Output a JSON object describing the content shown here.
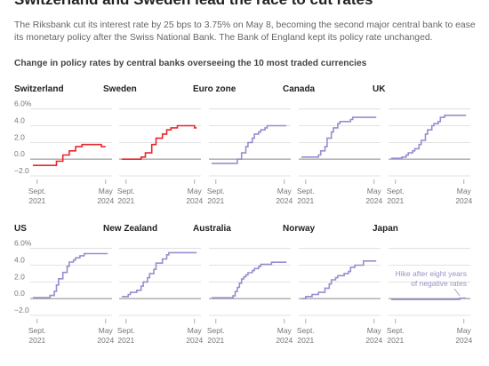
{
  "header": {
    "headline": "Switzerland and Sweden lead the race to cut rates",
    "subhead": "The Riksbank cut its interest rate by 25 bps to 3.75% on May 8, becoming the second major central bank to ease its monetary policy after the Swiss National Bank. The Bank of England kept its policy rate unchanged."
  },
  "colors": {
    "cut": "#e8262c",
    "no_cut": "#9b8ccf",
    "grid": "#d9d9d9",
    "baseline": "#888888"
  },
  "chart_data": {
    "type": "line",
    "title": "Change in policy rates by central banks overseeing the 10 most traded currencies",
    "y_tick_labels": [
      "6.0%",
      "4.0",
      "2.0",
      "0.0",
      "−2.0"
    ],
    "y_ticks": [
      6,
      4,
      2,
      0,
      -2
    ],
    "ylim": [
      -2,
      6.5
    ],
    "x_range": [
      "2021-09",
      "2024-05"
    ],
    "x_tick_labels": [
      [
        "Sept.",
        "2021"
      ],
      [
        "May",
        "2024"
      ]
    ],
    "panels": [
      {
        "name": "Switzerland",
        "color": "cut",
        "show_y_labels": true,
        "x": [
          "2021-07",
          "2022-06",
          "2022-09",
          "2022-12",
          "2023-03",
          "2023-06",
          "2024-03",
          "2024-05"
        ],
        "y": [
          -0.75,
          -0.25,
          0.5,
          1.0,
          1.5,
          1.75,
          1.5,
          1.5
        ]
      },
      {
        "name": "Sweden",
        "color": "cut",
        "show_y_labels": false,
        "x": [
          "2021-07",
          "2022-04",
          "2022-06",
          "2022-09",
          "2022-11",
          "2023-02",
          "2023-04",
          "2023-06",
          "2023-09",
          "2024-05",
          "2024-06"
        ],
        "y": [
          0,
          0.25,
          0.75,
          1.75,
          2.5,
          3.0,
          3.5,
          3.75,
          4.0,
          3.75,
          3.75
        ]
      },
      {
        "name": "Euro zone",
        "color": "no_cut",
        "show_y_labels": false,
        "x": [
          "2021-07",
          "2022-07",
          "2022-09",
          "2022-11",
          "2022-12",
          "2023-02",
          "2023-03",
          "2023-05",
          "2023-06",
          "2023-08",
          "2023-09",
          "2024-06"
        ],
        "y": [
          -0.5,
          0,
          0.75,
          1.5,
          2.0,
          2.5,
          3.0,
          3.25,
          3.5,
          3.75,
          4.0,
          4.0
        ]
      },
      {
        "name": "Canada",
        "color": "no_cut",
        "show_y_labels": false,
        "x": [
          "2021-07",
          "2022-03",
          "2022-04",
          "2022-06",
          "2022-07",
          "2022-09",
          "2022-10",
          "2022-12",
          "2023-01",
          "2023-06",
          "2023-07",
          "2024-06"
        ],
        "y": [
          0.25,
          0.5,
          1.0,
          1.5,
          2.5,
          3.25,
          3.75,
          4.25,
          4.5,
          4.75,
          5.0,
          5.0
        ]
      },
      {
        "name": "UK",
        "color": "no_cut",
        "show_y_labels": false,
        "x": [
          "2021-07",
          "2021-12",
          "2022-02",
          "2022-03",
          "2022-05",
          "2022-06",
          "2022-08",
          "2022-09",
          "2022-11",
          "2022-12",
          "2023-02",
          "2023-03",
          "2023-05",
          "2023-06",
          "2023-08",
          "2024-06"
        ],
        "y": [
          0.1,
          0.25,
          0.5,
          0.75,
          1.0,
          1.25,
          1.75,
          2.25,
          3.0,
          3.5,
          4.0,
          4.25,
          4.5,
          5.0,
          5.25,
          5.25
        ]
      },
      {
        "name": "US",
        "color": "no_cut",
        "show_y_labels": true,
        "x": [
          "2021-07",
          "2022-03",
          "2022-05",
          "2022-06",
          "2022-07",
          "2022-09",
          "2022-11",
          "2022-12",
          "2023-02",
          "2023-03",
          "2023-05",
          "2023-07",
          "2024-06"
        ],
        "y": [
          0.13,
          0.38,
          0.88,
          1.63,
          2.38,
          3.13,
          3.88,
          4.38,
          4.63,
          4.88,
          5.13,
          5.38,
          5.38
        ]
      },
      {
        "name": "New Zealand",
        "color": "no_cut",
        "show_y_labels": false,
        "x": [
          "2021-07",
          "2021-10",
          "2021-11",
          "2022-02",
          "2022-04",
          "2022-05",
          "2022-07",
          "2022-08",
          "2022-10",
          "2022-11",
          "2023-02",
          "2023-04",
          "2023-05",
          "2024-06"
        ],
        "y": [
          0.25,
          0.5,
          0.75,
          1.0,
          1.5,
          2.0,
          2.5,
          3.0,
          3.5,
          4.25,
          4.75,
          5.25,
          5.5,
          5.5
        ]
      },
      {
        "name": "Australia",
        "color": "no_cut",
        "show_y_labels": false,
        "x": [
          "2021-07",
          "2022-05",
          "2022-06",
          "2022-07",
          "2022-08",
          "2022-09",
          "2022-10",
          "2022-11",
          "2022-12",
          "2023-02",
          "2023-03",
          "2023-05",
          "2023-06",
          "2023-11",
          "2024-06"
        ],
        "y": [
          0.1,
          0.35,
          0.85,
          1.35,
          1.85,
          2.35,
          2.6,
          2.85,
          3.1,
          3.35,
          3.6,
          3.85,
          4.1,
          4.35,
          4.35
        ]
      },
      {
        "name": "Norway",
        "color": "no_cut",
        "show_y_labels": false,
        "x": [
          "2021-07",
          "2021-09",
          "2021-12",
          "2022-03",
          "2022-06",
          "2022-08",
          "2022-09",
          "2022-11",
          "2022-12",
          "2023-03",
          "2023-05",
          "2023-06",
          "2023-08",
          "2023-12",
          "2024-06"
        ],
        "y": [
          0,
          0.25,
          0.5,
          0.75,
          1.25,
          1.75,
          2.25,
          2.5,
          2.75,
          3.0,
          3.25,
          3.75,
          4.0,
          4.5,
          4.5
        ]
      },
      {
        "name": "Japan",
        "color": "no_cut",
        "show_y_labels": false,
        "x": [
          "2021-07",
          "2024-03",
          "2024-06"
        ],
        "y": [
          -0.1,
          0.05,
          0.05
        ],
        "annotation": [
          "Hike after eight years",
          "of negative rates"
        ]
      }
    ]
  }
}
